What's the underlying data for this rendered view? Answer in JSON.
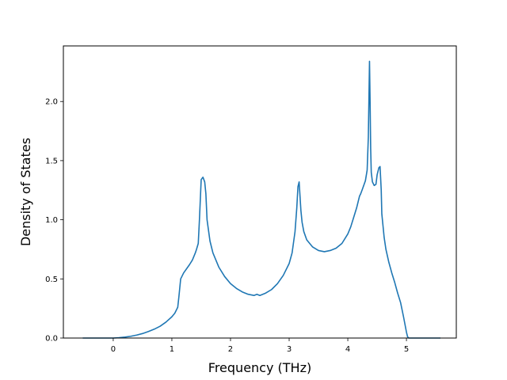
{
  "chart_data": {
    "type": "line",
    "title": "",
    "xlabel": "Frequency (THz)",
    "ylabel": "Density of States",
    "xlim": [
      -0.85,
      5.85
    ],
    "ylim": [
      0.0,
      2.47
    ],
    "xticks": [
      0,
      1,
      2,
      3,
      4,
      5
    ],
    "xtick_labels": [
      "0",
      "1",
      "2",
      "3",
      "4",
      "5"
    ],
    "yticks": [
      0.0,
      0.5,
      1.0,
      1.5,
      2.0
    ],
    "ytick_labels": [
      "0.0",
      "0.5",
      "1.0",
      "1.5",
      "2.0"
    ],
    "grid": false,
    "legend": "none",
    "series": [
      {
        "color": "#1f77b4",
        "x": [
          -0.52,
          0.0,
          0.1,
          0.2,
          0.3,
          0.4,
          0.5,
          0.6,
          0.7,
          0.8,
          0.9,
          1.0,
          1.05,
          1.1,
          1.12,
          1.15,
          1.2,
          1.3,
          1.35,
          1.4,
          1.42,
          1.45,
          1.47,
          1.5,
          1.53,
          1.56,
          1.58,
          1.6,
          1.65,
          1.7,
          1.8,
          1.9,
          2.0,
          2.1,
          2.2,
          2.3,
          2.4,
          2.45,
          2.5,
          2.6,
          2.7,
          2.8,
          2.9,
          3.0,
          3.05,
          3.1,
          3.13,
          3.15,
          3.17,
          3.2,
          3.22,
          3.25,
          3.3,
          3.4,
          3.5,
          3.6,
          3.7,
          3.8,
          3.9,
          4.0,
          4.05,
          4.1,
          4.15,
          4.2,
          4.22,
          4.25,
          4.3,
          4.33,
          4.35,
          4.37,
          4.38,
          4.39,
          4.4,
          4.42,
          4.45,
          4.48,
          4.5,
          4.53,
          4.55,
          4.57,
          4.58,
          4.6,
          4.62,
          4.65,
          4.7,
          4.75,
          4.8,
          4.85,
          4.9,
          4.95,
          5.0,
          5.02,
          5.04,
          5.06,
          5.1,
          5.3,
          5.58
        ],
        "y": [
          0.0,
          0.0,
          0.003,
          0.008,
          0.015,
          0.025,
          0.038,
          0.055,
          0.075,
          0.1,
          0.135,
          0.18,
          0.21,
          0.26,
          0.35,
          0.5,
          0.55,
          0.62,
          0.66,
          0.72,
          0.75,
          0.8,
          1.0,
          1.34,
          1.36,
          1.32,
          1.22,
          1.0,
          0.82,
          0.72,
          0.6,
          0.52,
          0.46,
          0.42,
          0.39,
          0.37,
          0.36,
          0.37,
          0.36,
          0.38,
          0.41,
          0.46,
          0.53,
          0.63,
          0.72,
          0.9,
          1.1,
          1.28,
          1.32,
          1.08,
          0.98,
          0.9,
          0.83,
          0.77,
          0.74,
          0.73,
          0.74,
          0.76,
          0.8,
          0.88,
          0.94,
          1.02,
          1.1,
          1.2,
          1.22,
          1.26,
          1.33,
          1.42,
          1.7,
          2.34,
          2.0,
          1.6,
          1.4,
          1.32,
          1.29,
          1.3,
          1.38,
          1.44,
          1.45,
          1.25,
          1.05,
          0.95,
          0.85,
          0.75,
          0.64,
          0.55,
          0.47,
          0.38,
          0.3,
          0.18,
          0.05,
          0.01,
          0.0,
          0.0,
          0.0,
          0.0,
          0.0
        ]
      }
    ]
  }
}
